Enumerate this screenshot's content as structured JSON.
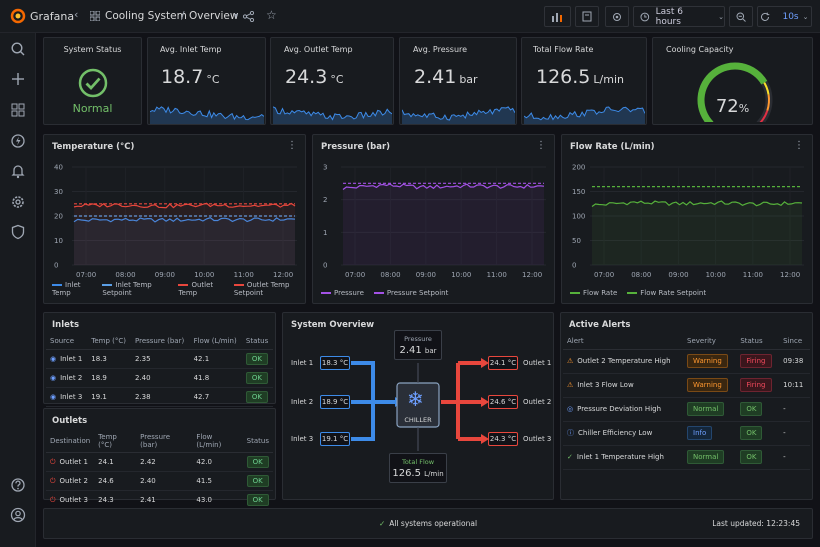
{
  "app": {
    "name": "Grafana"
  },
  "breadcrumb": {
    "folder": "Cooling System",
    "separator": "/",
    "dashboard": "Overview"
  },
  "toolbar": {
    "time_range": "Last 6 hours",
    "refresh": "10s"
  },
  "stats": {
    "system_status": {
      "title": "System Status",
      "value": "Normal"
    },
    "inlet_temp": {
      "title": "Avg. Inlet Temp",
      "value": "18.7",
      "unit": "°C"
    },
    "outlet_temp": {
      "title": "Avg. Outlet Temp",
      "value": "24.3",
      "unit": "°C"
    },
    "pressure": {
      "title": "Avg. Pressure",
      "value": "2.41",
      "unit": "bar"
    },
    "flow": {
      "title": "Total Flow Rate",
      "value": "126.5",
      "unit": "L/min"
    },
    "capacity": {
      "title": "Cooling Capacity",
      "value": "72",
      "unit": "%",
      "fraction": 0.72
    }
  },
  "charts": {
    "temperature": {
      "title": "Temperature (°C)"
    },
    "pressure": {
      "title": "Pressure (bar)"
    },
    "flow": {
      "title": "Flow Rate (L/min)"
    }
  },
  "chart_data": [
    {
      "type": "line",
      "title": "Temperature (°C)",
      "x": [
        "07:00",
        "08:00",
        "09:00",
        "10:00",
        "11:00",
        "12:00"
      ],
      "ylim": [
        0,
        40
      ],
      "yticks": [
        "0",
        "10",
        "20",
        "30",
        "40"
      ],
      "series": [
        {
          "name": "Inlet Temp",
          "values": [
            18.2,
            18.5,
            18.3,
            18.6,
            18.4,
            18.7
          ],
          "color": "#3d8be8",
          "dash": false
        },
        {
          "name": "Inlet Temp Setpoint",
          "values": [
            20,
            20,
            20,
            20,
            20,
            20
          ],
          "color": "#5b9fe6",
          "dash": true
        },
        {
          "name": "Outlet Temp",
          "values": [
            24.1,
            24.6,
            24.0,
            24.5,
            24.2,
            24.3
          ],
          "color": "#e8473d",
          "dash": false
        },
        {
          "name": "Outlet Temp Setpoint",
          "values": [
            25,
            25,
            25,
            25,
            25,
            25
          ],
          "color": "#e8473d",
          "dash": true
        }
      ],
      "legend": "bottom"
    },
    {
      "type": "line",
      "title": "Pressure (bar)",
      "x": [
        "07:00",
        "08:00",
        "09:00",
        "10:00",
        "11:00",
        "12:00"
      ],
      "ylim": [
        0,
        3
      ],
      "yticks": [
        "0",
        "1",
        "2",
        "3"
      ],
      "series": [
        {
          "name": "Pressure",
          "values": [
            2.35,
            2.45,
            2.38,
            2.42,
            2.4,
            2.41
          ],
          "color": "#a352e6",
          "dash": false
        },
        {
          "name": "Pressure Setpoint",
          "values": [
            2.5,
            2.5,
            2.5,
            2.5,
            2.5,
            2.5
          ],
          "color": "#a352e6",
          "dash": true
        }
      ],
      "legend": "bottom"
    },
    {
      "type": "line",
      "title": "Flow Rate (L/min)",
      "x": [
        "07:00",
        "08:00",
        "09:00",
        "10:00",
        "11:00",
        "12:00"
      ],
      "ylim": [
        0,
        200
      ],
      "yticks": [
        "0",
        "50",
        "100",
        "150",
        "200"
      ],
      "series": [
        {
          "name": "Flow Rate",
          "values": [
            122,
            128,
            125,
            127,
            124,
            126.5
          ],
          "color": "#56b13b",
          "dash": false
        },
        {
          "name": "Flow Rate Setpoint",
          "values": [
            160,
            160,
            160,
            160,
            160,
            160
          ],
          "color": "#56b13b",
          "dash": true
        }
      ],
      "legend": "bottom"
    }
  ],
  "inlets": {
    "title": "Inlets",
    "headers": [
      "Source",
      "Temp (°C)",
      "Pressure (bar)",
      "Flow (L/min)",
      "Status"
    ],
    "rows": [
      {
        "name": "Inlet 1",
        "temp": "18.3",
        "pressure": "2.35",
        "flow": "42.1",
        "status": "OK"
      },
      {
        "name": "Inlet 2",
        "temp": "18.9",
        "pressure": "2.40",
        "flow": "41.8",
        "status": "OK"
      },
      {
        "name": "Inlet 3",
        "temp": "19.1",
        "pressure": "2.38",
        "flow": "42.7",
        "status": "OK"
      }
    ]
  },
  "outlets": {
    "title": "Outlets",
    "headers": [
      "Destination",
      "Temp (°C)",
      "Pressure (bar)",
      "Flow (L/min)",
      "Status"
    ],
    "rows": [
      {
        "name": "Outlet 1",
        "temp": "24.1",
        "pressure": "2.42",
        "flow": "42.0",
        "status": "OK"
      },
      {
        "name": "Outlet 2",
        "temp": "24.6",
        "pressure": "2.40",
        "flow": "41.5",
        "status": "OK"
      },
      {
        "name": "Outlet 3",
        "temp": "24.3",
        "pressure": "2.41",
        "flow": "43.0",
        "status": "OK"
      }
    ]
  },
  "overview": {
    "title": "System Overview",
    "pressure_label": "Pressure",
    "pressure_value": "2.41",
    "pressure_unit": "bar",
    "chiller_label": "CHILLER",
    "flow_label": "Total Flow",
    "flow_value": "126.5",
    "flow_unit": "L/min",
    "inlets": [
      {
        "label": "Inlet 1",
        "value": "18.3 °C"
      },
      {
        "label": "Inlet 2",
        "value": "18.9 °C"
      },
      {
        "label": "Inlet 3",
        "value": "19.1 °C"
      }
    ],
    "outlets": [
      {
        "label": "Outlet 1",
        "value": "24.1 °C"
      },
      {
        "label": "Outlet 2",
        "value": "24.6 °C"
      },
      {
        "label": "Outlet 3",
        "value": "24.3 °C"
      }
    ]
  },
  "alerts": {
    "title": "Active Alerts",
    "headers": [
      "Alert",
      "Severity",
      "Status",
      "Since"
    ],
    "rows": [
      {
        "icon": "warning-icon",
        "name": "Outlet 2 Temperature High",
        "severity": "Warning",
        "status": "Firing",
        "since": "09:38"
      },
      {
        "icon": "warning-icon",
        "name": "Inlet 3 Flow Low",
        "severity": "Warning",
        "status": "Firing",
        "since": "10:11"
      },
      {
        "icon": "check-circle-icon",
        "name": "Pressure Deviation High",
        "severity": "Normal",
        "status": "OK",
        "since": "-"
      },
      {
        "icon": "info-icon",
        "name": "Chiller Efficiency Low",
        "severity": "Info",
        "status": "OK",
        "since": "-"
      },
      {
        "icon": "check-circle-icon",
        "name": "Inlet 1 Temperature High",
        "severity": "Normal",
        "status": "OK",
        "since": "-"
      }
    ]
  },
  "footer": {
    "status": "All systems operational",
    "updated": "Last updated: 12:23:45"
  },
  "colors": {
    "ok": "#73bf69",
    "warning": "#ff9830",
    "firing": "#f2495c",
    "blue": "#3d8be8",
    "red": "#e8473d",
    "purple": "#a352e6"
  }
}
